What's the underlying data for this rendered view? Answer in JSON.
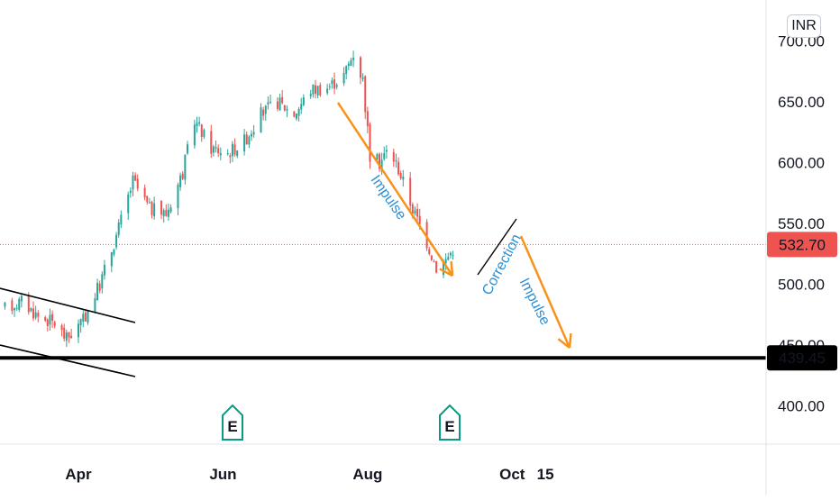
{
  "chart_data": {
    "type": "candlestick",
    "currency": "INR",
    "y_axis": {
      "ticks": [
        400,
        450,
        500,
        550,
        600,
        650,
        700
      ],
      "tick_labels": [
        "400.00",
        "450.00",
        "500.00",
        "550.00",
        "600.00",
        "650.00",
        "700.00"
      ],
      "range": [
        357,
        722
      ]
    },
    "x_axis": {
      "tick_labels": [
        "Apr",
        "Jun",
        "Aug",
        "Oct",
        "15"
      ]
    },
    "last_price": {
      "value": 532.7,
      "label": "532.70",
      "color": "#ef5350"
    },
    "support_level": {
      "value": 439.45,
      "label": "439.45",
      "color": "#000000"
    },
    "colors": {
      "up": "#26a69a",
      "down": "#ef5350",
      "arrow": "#f7931a",
      "annotation": "#2b8fd4"
    },
    "annotations": [
      "Impulse",
      "Correction",
      "Impulse"
    ],
    "earnings_markers": [
      "E",
      "E"
    ],
    "price_path": [
      [
        "2024-03-01",
        480
      ],
      [
        "2024-03-08",
        486
      ],
      [
        "2024-03-15",
        474
      ],
      [
        "2024-03-22",
        468
      ],
      [
        "2024-03-27",
        455
      ],
      [
        "2024-04-03",
        470
      ],
      [
        "2024-04-10",
        500
      ],
      [
        "2024-04-17",
        540
      ],
      [
        "2024-04-24",
        585
      ],
      [
        "2024-05-01",
        562
      ],
      [
        "2024-05-08",
        558
      ],
      [
        "2024-05-15",
        592
      ],
      [
        "2024-05-20",
        635
      ],
      [
        "2024-05-27",
        612
      ],
      [
        "2024-06-03",
        608
      ],
      [
        "2024-06-10",
        618
      ],
      [
        "2024-06-17",
        640
      ],
      [
        "2024-06-24",
        650
      ],
      [
        "2024-07-01",
        640
      ],
      [
        "2024-07-08",
        660
      ],
      [
        "2024-07-15",
        662
      ],
      [
        "2024-07-22",
        672
      ],
      [
        "2024-07-26",
        690
      ],
      [
        "2024-07-30",
        668
      ],
      [
        "2024-08-02",
        605
      ],
      [
        "2024-08-06",
        600
      ],
      [
        "2024-08-10",
        612
      ],
      [
        "2024-08-14",
        595
      ],
      [
        "2024-08-20",
        562
      ],
      [
        "2024-08-25",
        540
      ],
      [
        "2024-08-30",
        514
      ],
      [
        "2024-09-03",
        520
      ],
      [
        "2024-09-07",
        532
      ]
    ]
  }
}
